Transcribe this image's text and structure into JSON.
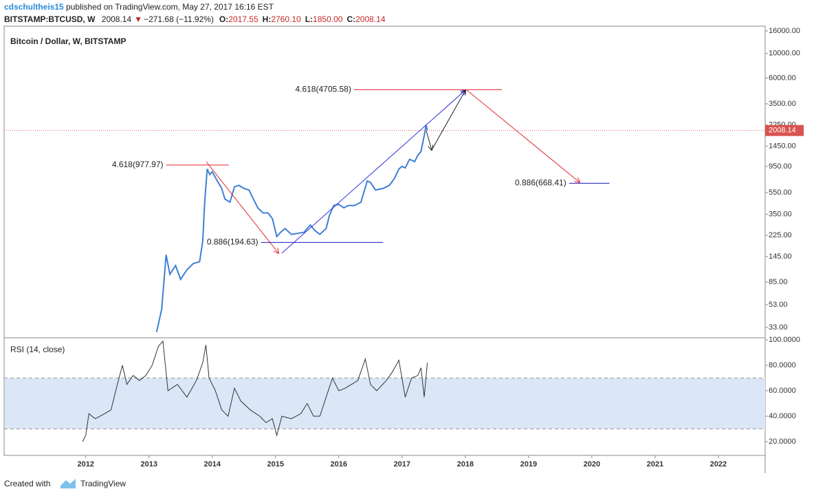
{
  "header": {
    "author": "cdschultheis15",
    "published": "published on TradingView.com, May 27, 2017 16:16 EST",
    "symbol": "BITSTAMP:BTCUSD, W",
    "price": "2008.14",
    "change": "−271.68 (−11.92%)",
    "o_label": "O:",
    "o": "2017.55",
    "h_label": "H:",
    "h": "2760.10",
    "l_label": "L:",
    "l": "1850.00",
    "c_label": "C:",
    "c": "2008.14"
  },
  "chart_data": [
    {
      "type": "line",
      "title": "Bitcoin / Dollar, W, BITSTAMP",
      "log_scale": true,
      "color": "#3d7fd6",
      "x": [
        2013.12,
        2013.2,
        2013.27,
        2013.33,
        2013.42,
        2013.5,
        2013.6,
        2013.7,
        2013.8,
        2013.85,
        2013.88,
        2013.92,
        2013.96,
        2014.0,
        2014.08,
        2014.15,
        2014.2,
        2014.28,
        2014.35,
        2014.42,
        2014.5,
        2014.58,
        2014.65,
        2014.72,
        2014.8,
        2014.88,
        2014.95,
        2015.02,
        2015.08,
        2015.15,
        2015.25,
        2015.35,
        2015.45,
        2015.55,
        2015.62,
        2015.7,
        2015.8,
        2015.85,
        2015.92,
        2016.0,
        2016.08,
        2016.15,
        2016.25,
        2016.35,
        2016.45,
        2016.5,
        2016.58,
        2016.7,
        2016.8,
        2016.88,
        2016.95,
        2017.0,
        2017.05,
        2017.12,
        2017.2,
        2017.25,
        2017.3,
        2017.35,
        2017.38,
        2017.4
      ],
      "values": [
        30,
        48,
        150,
        100,
        120,
        90,
        110,
        125,
        130,
        200,
        450,
        900,
        800,
        850,
        700,
        600,
        480,
        450,
        620,
        640,
        600,
        580,
        480,
        400,
        360,
        360,
        320,
        220,
        240,
        260,
        230,
        235,
        240,
        280,
        250,
        230,
        260,
        340,
        420,
        430,
        400,
        420,
        420,
        450,
        700,
        680,
        580,
        600,
        640,
        740,
        900,
        950,
        920,
        1100,
        1050,
        1200,
        1300,
        1800,
        2250,
        2008.14
      ],
      "xlim": [
        2010.71,
        2022.74
      ],
      "xticks": [
        2012,
        2013,
        2014,
        2015,
        2016,
        2017,
        2018,
        2019,
        2020,
        2021,
        2022
      ],
      "ylim": [
        27,
        17700
      ],
      "yticks": [
        {
          "value": 16000,
          "label": "16000.00"
        },
        {
          "value": 10000,
          "label": "10000.00"
        },
        {
          "value": 6000,
          "label": "6000.00"
        },
        {
          "value": 3500,
          "label": "3500.00"
        },
        {
          "value": 2250,
          "label": "2250.00"
        },
        {
          "value": 1450,
          "label": "1450.00"
        },
        {
          "value": 950,
          "label": "950.00"
        },
        {
          "value": 550,
          "label": "550.00"
        },
        {
          "value": 350,
          "label": "350.00"
        },
        {
          "value": 225,
          "label": "225.00"
        },
        {
          "value": 145,
          "label": "145.00"
        },
        {
          "value": 85,
          "label": "85.00"
        },
        {
          "value": 53,
          "label": "53.00"
        },
        {
          "value": 33,
          "label": "33.00"
        }
      ],
      "last_price": 2008.14,
      "last_price_color": "#d9534f",
      "annotations": [
        {
          "label": "4.618(4705.58)",
          "value": 4705.58,
          "x": [
            2016.24,
            2018.58
          ],
          "color": "#e0282e"
        },
        {
          "label": "4.618(977.97)",
          "value": 977.97,
          "x": [
            2013.27,
            2014.26
          ],
          "color": "#e0282e"
        },
        {
          "label": "0.886(194.63)",
          "value": 194.63,
          "x": [
            2014.77,
            2016.7
          ],
          "color": "#1a1ab8"
        },
        {
          "label": "0.886(668.41)",
          "value": 668.41,
          "x": [
            2019.64,
            2020.28
          ],
          "color": "#1a1ab8"
        }
      ]
    },
    {
      "type": "line",
      "title": "RSI (14, close)",
      "color": "#333333",
      "x": [
        2011.95,
        2012.0,
        2012.05,
        2012.15,
        2012.3,
        2012.4,
        2012.5,
        2012.58,
        2012.65,
        2012.75,
        2012.85,
        2012.95,
        2013.05,
        2013.15,
        2013.22,
        2013.3,
        2013.45,
        2013.6,
        2013.75,
        2013.85,
        2013.9,
        2013.95,
        2014.05,
        2014.15,
        2014.25,
        2014.35,
        2014.45,
        2014.6,
        2014.75,
        2014.85,
        2014.95,
        2015.02,
        2015.1,
        2015.25,
        2015.4,
        2015.5,
        2015.6,
        2015.7,
        2015.8,
        2015.9,
        2016.0,
        2016.1,
        2016.2,
        2016.3,
        2016.42,
        2016.5,
        2016.6,
        2016.75,
        2016.85,
        2016.95,
        2017.05,
        2017.15,
        2017.25,
        2017.3,
        2017.35,
        2017.4
      ],
      "values": [
        20,
        25,
        42,
        38,
        42,
        45,
        65,
        80,
        65,
        72,
        68,
        72,
        80,
        95,
        99,
        60,
        65,
        55,
        68,
        82,
        96,
        70,
        60,
        45,
        40,
        62,
        52,
        45,
        40,
        35,
        38,
        25,
        40,
        38,
        42,
        50,
        40,
        40,
        55,
        70,
        60,
        62,
        65,
        68,
        85,
        65,
        60,
        68,
        75,
        84,
        55,
        70,
        72,
        78,
        55,
        82
      ],
      "xlim": [
        2010.71,
        2022.74
      ],
      "ylim": [
        9.2,
        101.1
      ],
      "yticks": [
        {
          "value": 100,
          "label": "100.0000"
        },
        {
          "value": 80,
          "label": "80.0000"
        },
        {
          "value": 60,
          "label": "60.0000"
        },
        {
          "value": 40,
          "label": "40.0000"
        },
        {
          "value": 20,
          "label": "20.0000"
        }
      ],
      "band": [
        30,
        70
      ],
      "band_color": "#dbe6f7"
    }
  ],
  "footer": {
    "created": "Created with",
    "brand": "TradingView"
  }
}
